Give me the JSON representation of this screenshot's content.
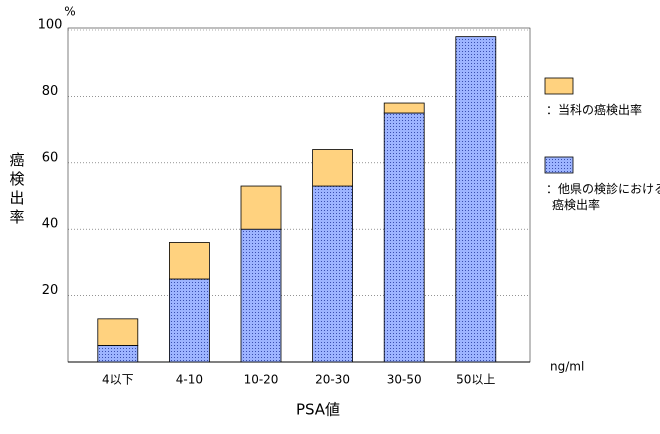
{
  "chart_data": {
    "type": "stacked_bar",
    "y_label": "癌検出率",
    "y_unit": "%",
    "x_label": "PSA値",
    "x_unit": "ng/ml",
    "categories": [
      "4以下",
      "4-10",
      "10-20",
      "20-30",
      "30-50",
      "50以上"
    ],
    "series": [
      {
        "name": "：他県の検診における\n癌検出率",
        "color": "#8fa8f0",
        "values": [
          5,
          25,
          40,
          53,
          75,
          98
        ]
      },
      {
        "name": "：当科の癌検出率",
        "color": "#ffd27f",
        "values": [
          8,
          11,
          13,
          11,
          3,
          0
        ]
      }
    ],
    "ylim": [
      0,
      100
    ],
    "yticks": [
      20,
      40,
      60,
      80,
      100
    ],
    "grid": true
  }
}
